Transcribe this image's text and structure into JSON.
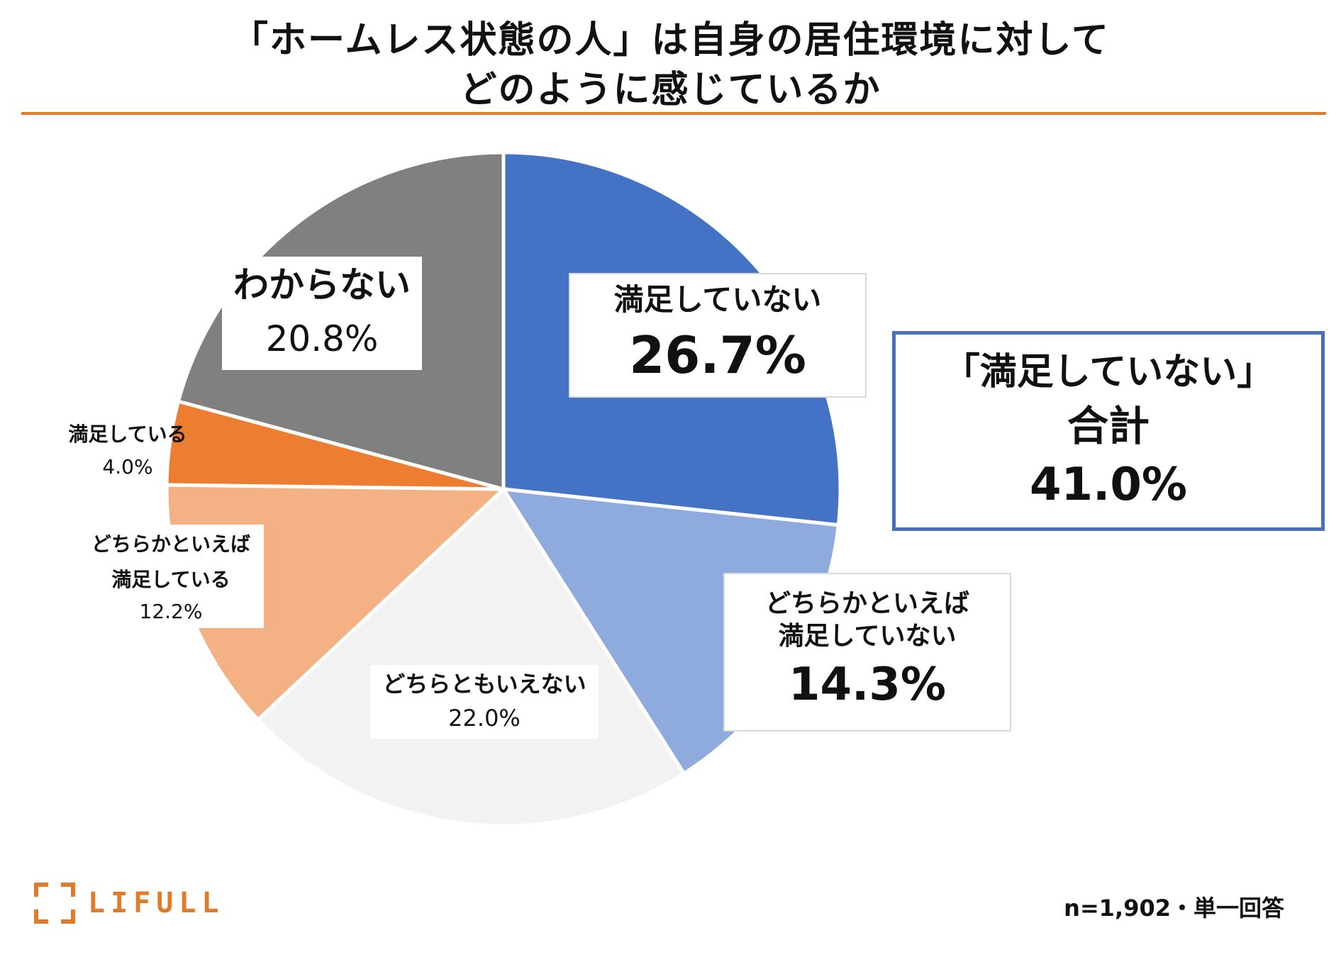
{
  "title": {
    "line1": "「ホームレス状態の人」は自身の居住環境に対して",
    "line2": "どのように感じているか"
  },
  "chart_data": {
    "type": "pie",
    "title": "「ホームレス状態の人」は自身の居住環境に対して どのように感じているか",
    "start_angle_deg": 0,
    "direction": "clockwise",
    "slices": [
      {
        "name": "満足していない",
        "value": 26.7,
        "label": "26.7%",
        "color": "#4472c4"
      },
      {
        "name": "どちらかといえば満足していない",
        "value": 14.3,
        "label": "14.3%",
        "color": "#8faadc"
      },
      {
        "name": "どちらともいえない",
        "value": 22.0,
        "label": "22.0%",
        "color": "#f2f2f2"
      },
      {
        "name": "どちらかといえば満足している",
        "value": 12.2,
        "label": "12.2%",
        "color": "#f4b183"
      },
      {
        "name": "満足している",
        "value": 4.0,
        "label": "4.0%",
        "color": "#ed7d31"
      },
      {
        "name": "わからない",
        "value": 20.8,
        "label": "20.8%",
        "color": "#808080"
      }
    ]
  },
  "labels": {
    "manzoku_nai": {
      "line1": "満足していない",
      "pct": "26.7%"
    },
    "yaya_nai": {
      "line1": "どちらかといえば",
      "line2": "満足していない",
      "pct": "14.3%"
    },
    "dochira": {
      "line1": "どちらともいえない",
      "pct": "22.0%"
    },
    "yaya_aru": {
      "line1": "どちらかといえば",
      "line2": "満足している",
      "pct": "12.2%"
    },
    "manzoku_aru": {
      "line1": "満足している",
      "pct": "4.0%"
    },
    "wakaranai": {
      "line1": "わからない",
      "pct": "20.8%"
    }
  },
  "summary": {
    "line1": "「満足していない」",
    "line2": "合計",
    "line3": "41.0%",
    "border_color": "#4a6fb5"
  },
  "footer": {
    "logo_text": "LIFULL",
    "logo_color": "#e07b2a",
    "sample_note": "n=1,902・単一回答"
  }
}
